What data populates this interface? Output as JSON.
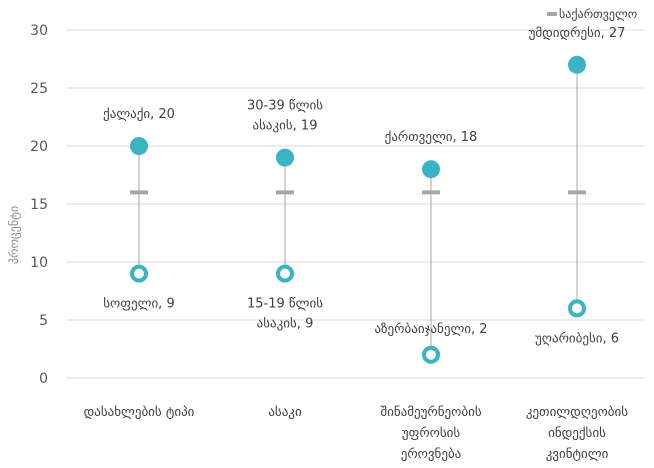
{
  "chart_data": {
    "type": "scatter",
    "ylabel": "პროცენტი",
    "ylim": [
      0,
      30
    ],
    "yticks": [
      0,
      5,
      10,
      15,
      20,
      25,
      30
    ],
    "grid": true,
    "legend": {
      "position": "top-right",
      "label": "საქართველო"
    },
    "categories": [
      [
        "დასახლების ტიპი"
      ],
      [
        "ასაკი"
      ],
      [
        "შინამეურნეობის",
        "უფროსის",
        "ეროვნება"
      ],
      [
        "კეთილდღეობის",
        "ინდექსის",
        "კვინტილი"
      ]
    ],
    "series": [
      {
        "name": "საქართველო",
        "marker": "dash",
        "color": "#a6a6a6",
        "values": [
          16,
          16,
          16,
          16
        ]
      },
      {
        "marker": "filled-circle",
        "color": "#3cb3c2",
        "values": [
          20,
          19,
          18,
          27
        ],
        "labels": [
          [
            "ქალაქი, 20"
          ],
          [
            "30-39 წლის",
            "ასაკის, 19"
          ],
          [
            "ქართველი, 18"
          ],
          [
            "უმდიდრესი, 27"
          ]
        ]
      },
      {
        "marker": "hollow-circle",
        "color": "#3cb3c2",
        "values": [
          9,
          9,
          2,
          6
        ],
        "labels": [
          [
            "სოფელი, 9"
          ],
          [
            "15-19 წლის",
            "ასაკის, 9"
          ],
          [
            "აზერბაიჯანელი, 2"
          ],
          [
            "უღარიბესი, 6"
          ]
        ]
      }
    ],
    "colors": {
      "grid": "#d9d9d9",
      "range_line": "#a6a6a6"
    }
  }
}
